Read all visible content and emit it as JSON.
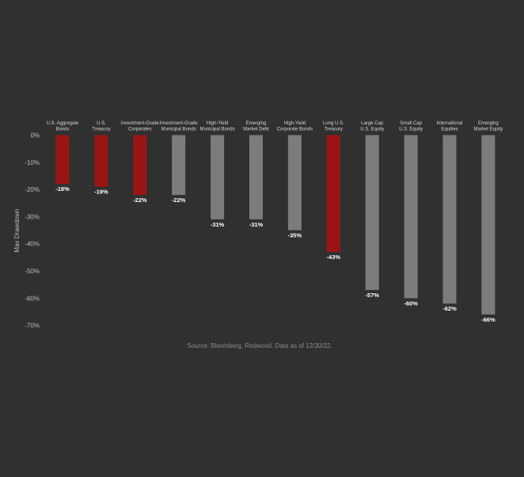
{
  "chart_data": {
    "type": "bar",
    "ylabel": "Max Drawdown",
    "ylim": [
      -70,
      0
    ],
    "yticks": [
      "0%",
      "-10%",
      "-20%",
      "-30%",
      "-40%",
      "-50%",
      "-60%",
      "-70%"
    ],
    "ytick_values": [
      0,
      -10,
      -20,
      -30,
      -40,
      -50,
      -60,
      -70
    ],
    "categories": [
      [
        "U.S. Aggregate",
        "Bonds"
      ],
      [
        "U.S.",
        "Treasury"
      ],
      [
        "Investment-Grade",
        "Corporates"
      ],
      [
        "Investment-Grade",
        "Municipal Bonds"
      ],
      [
        "High-Yield",
        "Municipal Bonds"
      ],
      [
        "Emerging",
        "Market Debt"
      ],
      [
        "High-Yield",
        "Corporate Bonds"
      ],
      [
        "Long U.S.",
        "Treasury"
      ],
      [
        "Large Cap",
        "U.S. Equity"
      ],
      [
        "Small Cap",
        "U.S. Equity"
      ],
      [
        "International",
        "Equities"
      ],
      [
        "Emerging",
        "Market Equity"
      ]
    ],
    "values": [
      -18,
      -19,
      -22,
      -22,
      -31,
      -31,
      -35,
      -43,
      -57,
      -60,
      -62,
      -66
    ],
    "value_labels": [
      "-18%",
      "-19%",
      "-22%",
      "-22%",
      "-31%",
      "-31%",
      "-35%",
      "-43%",
      "-57%",
      "-60%",
      "-62%",
      "-66%"
    ],
    "highlighted": [
      true,
      true,
      true,
      false,
      false,
      false,
      false,
      true,
      false,
      false,
      false,
      false
    ],
    "colors": {
      "highlight": "#9b1414",
      "default": "#7c7c7c",
      "background": "#303030"
    },
    "grid": false,
    "legend": "none"
  },
  "footer": {
    "source": "Source: Bloomberg, Redwood. Data as of 12/30/22."
  }
}
